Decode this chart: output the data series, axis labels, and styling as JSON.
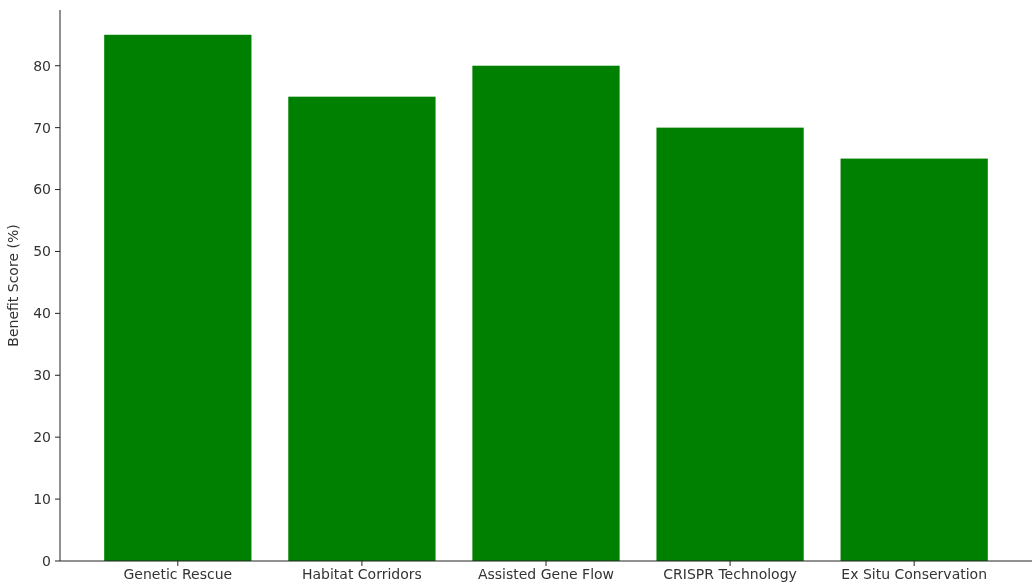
{
  "chart_data": {
    "type": "bar",
    "ylabel": "Benefit Score (%)",
    "categories": [
      "Genetic Rescue",
      "Habitat Corridors",
      "Assisted Gene Flow",
      "CRISPR Technology",
      "Ex Situ Conservation"
    ],
    "values": [
      85,
      75,
      80,
      70,
      65
    ],
    "color": "#008000",
    "ylim": [
      0,
      89
    ],
    "yticks": [
      0,
      10,
      20,
      30,
      40,
      50,
      60,
      70,
      80
    ]
  }
}
